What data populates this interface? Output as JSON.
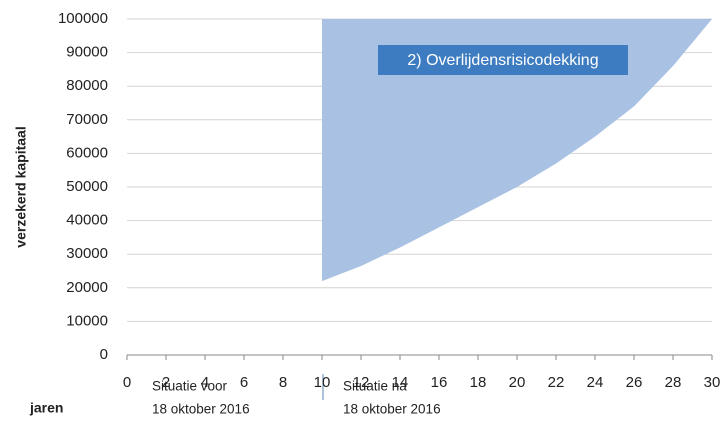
{
  "chart_data": {
    "type": "area",
    "y_label": "verzekerd kapitaal",
    "x_label": "jaren",
    "annotation": "2) Overlijdensrisicodekking",
    "x": [
      10,
      12,
      14,
      16,
      18,
      20,
      22,
      24,
      26,
      28,
      30
    ],
    "lower": [
      22000,
      26500,
      32000,
      38000,
      44000,
      50000,
      57000,
      65000,
      74000,
      86000,
      100000
    ],
    "upper": [
      100000,
      100000,
      100000,
      100000,
      100000,
      100000,
      100000,
      100000,
      100000,
      100000,
      100000
    ],
    "color": "#a9c1e3",
    "xlim": [
      0,
      30
    ],
    "xticks": [
      0,
      2,
      4,
      6,
      8,
      10,
      12,
      14,
      16,
      18,
      20,
      22,
      24,
      26,
      28,
      30
    ],
    "ylim": [
      0,
      100000
    ],
    "yticks": [
      0,
      10000,
      20000,
      30000,
      40000,
      50000,
      60000,
      70000,
      80000,
      90000,
      100000
    ],
    "grid": true,
    "periods": [
      {
        "line1": "Situatie voor",
        "line2": "18 oktober 2016"
      },
      {
        "line1": "Situatie na",
        "line2": "18 oktober 2016"
      }
    ]
  }
}
